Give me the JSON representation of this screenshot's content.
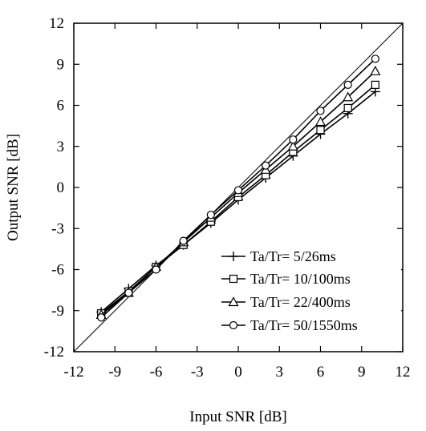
{
  "chart_data": {
    "type": "line",
    "xlabel": "Input SNR [dB]",
    "ylabel": "Output SNR [dB]",
    "xlim": [
      -12,
      12
    ],
    "ylim": [
      -12,
      12
    ],
    "xticks": [
      -12,
      -9,
      -6,
      -3,
      0,
      3,
      6,
      9,
      12
    ],
    "yticks": [
      -12,
      -9,
      -6,
      -3,
      0,
      3,
      6,
      9,
      12
    ],
    "reference_line": "y = x",
    "grid": false,
    "legend_position": "bottom-right",
    "x": [
      -10,
      -8,
      -6,
      -4,
      -2,
      0,
      2,
      4,
      6,
      8,
      10
    ],
    "series": [
      {
        "name": "Ta/Tr= 5/26ms",
        "marker": "plus",
        "values": [
          -9.1,
          -7.4,
          -5.7,
          -4.2,
          -2.6,
          -0.9,
          0.7,
          2.3,
          3.9,
          5.4,
          7.0
        ]
      },
      {
        "name": "Ta/Tr= 10/100ms",
        "marker": "square",
        "values": [
          -9.2,
          -7.6,
          -5.8,
          -4.2,
          -2.5,
          -0.7,
          0.9,
          2.6,
          4.2,
          5.8,
          7.5
        ]
      },
      {
        "name": "Ta/Tr= 22/400ms",
        "marker": "triangle",
        "values": [
          -9.3,
          -7.7,
          -5.8,
          -4.0,
          -2.2,
          -0.4,
          1.3,
          3.0,
          4.8,
          6.6,
          8.5
        ]
      },
      {
        "name": "Ta/Tr= 50/1550ms",
        "marker": "circle",
        "values": [
          -9.5,
          -7.7,
          -6.0,
          -3.9,
          -2.0,
          -0.2,
          1.6,
          3.5,
          5.6,
          7.5,
          9.4
        ]
      }
    ]
  }
}
